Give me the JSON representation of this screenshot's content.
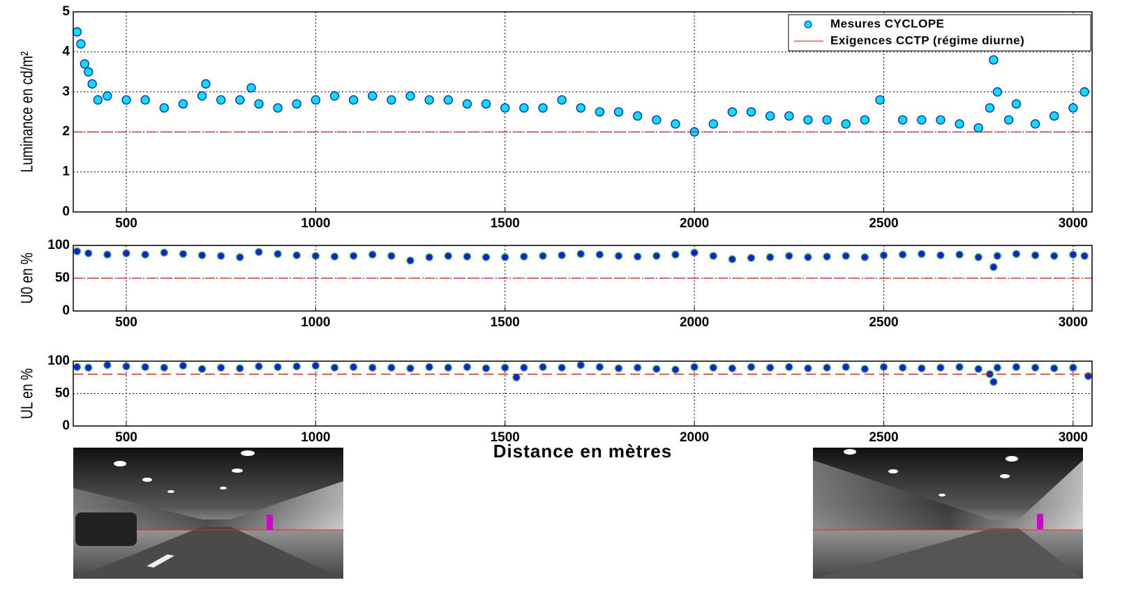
{
  "chart_data": [
    {
      "type": "scatter",
      "ylabel": "Luminance en cd/m²",
      "xlim": [
        360,
        3050
      ],
      "xticks": [
        500,
        1000,
        1500,
        2000,
        2500,
        3000
      ],
      "ylim": [
        0,
        5
      ],
      "yticks": [
        0,
        1,
        2,
        3,
        4,
        5
      ],
      "grid": true,
      "legend": "upper right",
      "series": [
        {
          "name": "Mesures CYCLOPE",
          "color": "#00e0ff",
          "marker": "circle",
          "x": [
            370,
            380,
            390,
            400,
            410,
            425,
            450,
            500,
            550,
            600,
            650,
            700,
            710,
            750,
            800,
            830,
            850,
            900,
            950,
            1000,
            1050,
            1100,
            1150,
            1200,
            1250,
            1300,
            1350,
            1400,
            1450,
            1500,
            1550,
            1600,
            1650,
            1700,
            1750,
            1800,
            1850,
            1900,
            1950,
            2000,
            2050,
            2100,
            2150,
            2200,
            2250,
            2300,
            2350,
            2400,
            2450,
            2490,
            2550,
            2600,
            2650,
            2700,
            2750,
            2780,
            2790,
            2800,
            2830,
            2850,
            2900,
            2950,
            3000,
            3030
          ],
          "values": [
            4.5,
            4.2,
            3.7,
            3.5,
            3.2,
            2.8,
            2.9,
            2.8,
            2.8,
            2.6,
            2.7,
            2.9,
            3.2,
            2.8,
            2.8,
            3.1,
            2.7,
            2.6,
            2.7,
            2.8,
            2.9,
            2.8,
            2.9,
            2.8,
            2.9,
            2.8,
            2.8,
            2.7,
            2.7,
            2.6,
            2.6,
            2.6,
            2.8,
            2.6,
            2.5,
            2.5,
            2.4,
            2.3,
            2.2,
            2.0,
            2.2,
            2.5,
            2.5,
            2.4,
            2.4,
            2.3,
            2.3,
            2.2,
            2.3,
            2.8,
            2.3,
            2.3,
            2.3,
            2.2,
            2.1,
            2.6,
            3.8,
            3.0,
            2.3,
            2.7,
            2.2,
            2.4,
            2.6,
            3.0
          ]
        },
        {
          "name": "Exigences CCTP (régime diurne)",
          "color": "#ff0000",
          "marker": "dashed-line",
          "x": [
            360,
            3050
          ],
          "values": [
            2,
            2
          ]
        }
      ]
    },
    {
      "type": "scatter",
      "ylabel": "U0 en %",
      "xlim": [
        360,
        3050
      ],
      "xticks": [
        500,
        1000,
        1500,
        2000,
        2500,
        3000
      ],
      "ylim": [
        0,
        100
      ],
      "yticks": [
        0,
        50,
        100
      ],
      "grid": true,
      "series": [
        {
          "color": "#1a1ae0",
          "marker": "circle",
          "x": [
            370,
            400,
            450,
            500,
            550,
            600,
            650,
            700,
            750,
            800,
            850,
            900,
            950,
            1000,
            1050,
            1100,
            1150,
            1200,
            1250,
            1300,
            1350,
            1400,
            1450,
            1500,
            1550,
            1600,
            1650,
            1700,
            1750,
            1800,
            1850,
            1900,
            1950,
            2000,
            2050,
            2100,
            2150,
            2200,
            2250,
            2300,
            2350,
            2400,
            2450,
            2500,
            2550,
            2600,
            2650,
            2700,
            2750,
            2790,
            2800,
            2850,
            2900,
            2950,
            3000,
            3030
          ],
          "values": [
            91,
            88,
            86,
            88,
            86,
            89,
            87,
            85,
            84,
            82,
            90,
            87,
            85,
            84,
            83,
            84,
            86,
            84,
            77,
            82,
            84,
            83,
            82,
            82,
            83,
            84,
            85,
            87,
            86,
            84,
            83,
            84,
            86,
            89,
            84,
            79,
            81,
            82,
            84,
            82,
            83,
            84,
            82,
            85,
            86,
            87,
            85,
            86,
            82,
            67,
            84,
            87,
            85,
            84,
            86,
            84
          ]
        },
        {
          "color": "#ff0000",
          "marker": "dashed-line",
          "x": [
            360,
            3050
          ],
          "values": [
            50,
            50
          ]
        }
      ]
    },
    {
      "type": "scatter",
      "ylabel": "UL en %",
      "xlabel": "Distance en mètres",
      "xlim": [
        360,
        3050
      ],
      "xticks": [
        500,
        1000,
        1500,
        2000,
        2500,
        3000
      ],
      "ylim": [
        0,
        100
      ],
      "yticks": [
        0,
        50,
        100
      ],
      "grid": true,
      "series": [
        {
          "color": "#1a1ae0",
          "marker": "circle",
          "x": [
            370,
            400,
            450,
            500,
            550,
            600,
            650,
            700,
            750,
            800,
            850,
            900,
            950,
            1000,
            1050,
            1100,
            1150,
            1200,
            1250,
            1300,
            1350,
            1400,
            1450,
            1500,
            1530,
            1550,
            1600,
            1650,
            1700,
            1750,
            1800,
            1850,
            1900,
            1950,
            2000,
            2050,
            2100,
            2150,
            2200,
            2250,
            2300,
            2350,
            2400,
            2450,
            2500,
            2550,
            2600,
            2650,
            2700,
            2750,
            2780,
            2790,
            2800,
            2850,
            2900,
            2950,
            3000,
            3040
          ],
          "values": [
            91,
            90,
            94,
            92,
            91,
            90,
            93,
            88,
            90,
            89,
            92,
            91,
            92,
            93,
            90,
            91,
            90,
            90,
            89,
            91,
            90,
            91,
            89,
            90,
            75,
            90,
            91,
            90,
            94,
            91,
            89,
            90,
            88,
            87,
            91,
            90,
            89,
            91,
            90,
            91,
            89,
            90,
            91,
            88,
            91,
            90,
            89,
            90,
            91,
            88,
            80,
            68,
            90,
            91,
            90,
            89,
            90,
            77
          ]
        },
        {
          "color": "#ff0000",
          "marker": "dashed-line",
          "x": [
            360,
            3050
          ],
          "values": [
            80,
            80
          ]
        }
      ]
    }
  ]
}
